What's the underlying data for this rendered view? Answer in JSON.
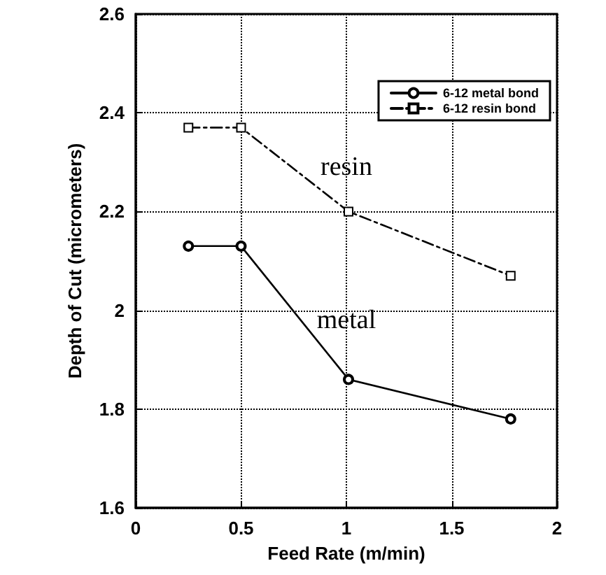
{
  "chart_data": {
    "type": "line",
    "xlabel": "Feed Rate (m/min)",
    "ylabel": "Depth of Cut (micrometers)",
    "x": [
      0.25,
      0.5,
      1.01,
      1.78
    ],
    "series": [
      {
        "name": "6-12 metal bond",
        "color": "#000000",
        "marker": "circle",
        "line_style": "solid",
        "values": [
          2.13,
          2.13,
          1.86,
          1.78
        ]
      },
      {
        "name": "6-12 resin bond",
        "color": "#000000",
        "marker": "square",
        "line_style": "dashed",
        "values": [
          2.37,
          2.37,
          2.2,
          2.07
        ]
      }
    ],
    "xlim": [
      0,
      2
    ],
    "xticks": [
      0,
      0.5,
      1,
      1.5,
      2
    ],
    "ylim": [
      1.6,
      2.6
    ],
    "yticks": [
      1.6,
      1.8,
      2,
      2.2,
      2.4,
      2.6
    ],
    "grid": true,
    "legend": "top right",
    "annotations": [
      "resin",
      "metal"
    ]
  }
}
